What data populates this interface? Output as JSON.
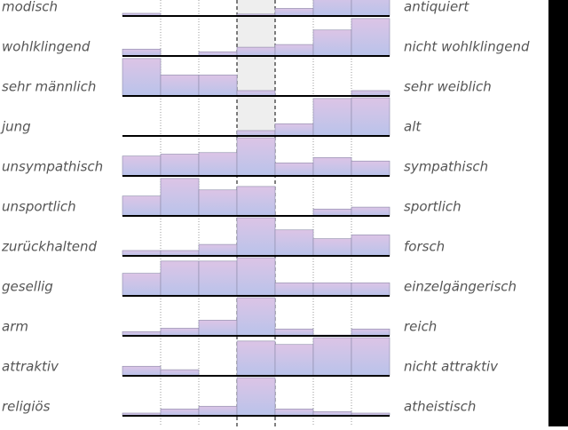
{
  "chart_data": {
    "type": "bar",
    "ylim": [
      0,
      100
    ],
    "rows": [
      {
        "left": "modisch",
        "right": "antiquiert",
        "values": [
          7,
          0,
          0,
          5,
          20,
          60,
          70
        ]
      },
      {
        "left": "wohlklingend",
        "right": "nicht wohlklingend",
        "values": [
          18,
          0,
          11,
          23,
          30,
          68,
          98
        ]
      },
      {
        "left": "sehr männlich",
        "right": "sehr weiblich",
        "values": [
          98,
          55,
          55,
          14,
          0,
          0,
          14
        ]
      },
      {
        "left": "jung",
        "right": "alt",
        "values": [
          0,
          0,
          0,
          14,
          32,
          98,
          100
        ]
      },
      {
        "left": "unsympathisch",
        "right": "sympathisch",
        "values": [
          52,
          57,
          61,
          100,
          34,
          48,
          39
        ]
      },
      {
        "left": "unsportlich",
        "right": "sportlich",
        "values": [
          52,
          98,
          68,
          77,
          0,
          18,
          23
        ]
      },
      {
        "left": "zurückhaltend",
        "right": "forsch",
        "values": [
          14,
          14,
          30,
          100,
          68,
          45,
          55
        ]
      },
      {
        "left": "gesellig",
        "right": "einzelgängerisch",
        "values": [
          59,
          91,
          91,
          100,
          34,
          34,
          34
        ]
      },
      {
        "left": "arm",
        "right": "reich",
        "values": [
          11,
          20,
          41,
          100,
          18,
          2,
          18
        ]
      },
      {
        "left": "attraktiv",
        "right": "nicht attraktiv",
        "values": [
          25,
          16,
          0,
          91,
          82,
          100,
          100
        ]
      },
      {
        "left": "religiös",
        "right": "atheistisch",
        "values": [
          7,
          18,
          25,
          100,
          18,
          11,
          7
        ]
      }
    ]
  }
}
